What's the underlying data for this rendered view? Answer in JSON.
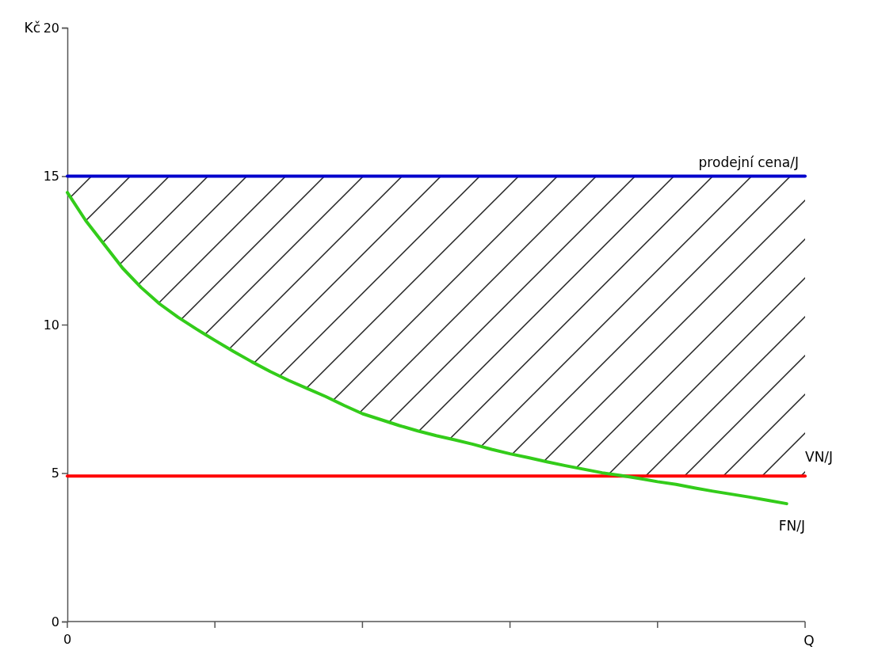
{
  "chart_data": {
    "type": "line",
    "ylabel": "Kč",
    "xlabel": "Q",
    "annotations": [
      "0"
    ],
    "categories": [
      null,
      null,
      null,
      null,
      null,
      null,
      null,
      null,
      null,
      null,
      null,
      null,
      null,
      null,
      null,
      null,
      null,
      null,
      null,
      null,
      null,
      null,
      null,
      null,
      null,
      null,
      null,
      null,
      null,
      null,
      null,
      null,
      null,
      null,
      null,
      null,
      null,
      null,
      null,
      null,
      null
    ],
    "ylim": [
      0,
      20
    ],
    "yticks": [
      0,
      5,
      10,
      15,
      20
    ],
    "legend": false,
    "marker": "none",
    "line_style": "solid",
    "series": [
      {
        "name": "prodejní cena/J",
        "color": "#0000cc",
        "values": [
          15,
          15,
          15,
          15,
          15,
          15,
          15,
          15,
          15,
          15,
          15,
          15,
          15,
          15,
          15,
          15,
          15,
          15,
          15,
          15,
          15,
          15,
          15,
          15,
          15,
          15,
          15,
          15,
          15,
          15,
          15,
          15,
          15,
          15,
          15,
          15,
          15,
          15,
          15,
          15,
          15
        ]
      },
      {
        "name": "VN/J",
        "color": "#ff0000",
        "values": [
          4.9,
          4.9,
          4.9,
          4.9,
          4.9,
          4.9,
          4.9,
          4.9,
          4.9,
          4.9,
          4.9,
          4.9,
          4.9,
          4.9,
          4.9,
          4.9,
          4.9,
          4.9,
          4.9,
          4.9,
          4.9,
          4.9,
          4.9,
          4.9,
          4.9,
          4.9,
          4.9,
          4.9,
          4.9,
          4.9,
          4.9,
          4.9,
          4.9,
          4.9,
          4.9,
          4.9,
          4.9,
          4.9,
          4.9,
          4.9,
          4.9
        ]
      },
      {
        "name": "FN/J",
        "color": "#33cc1a",
        "values": [
          14.45,
          13.5,
          12.7,
          11.9,
          11.25,
          10.7,
          10.25,
          9.85,
          9.47,
          9.1,
          8.75,
          8.42,
          8.12,
          7.85,
          7.58,
          7.28,
          7.0,
          6.8,
          6.6,
          6.42,
          6.26,
          6.12,
          5.97,
          5.8,
          5.65,
          5.52,
          5.38,
          5.25,
          5.13,
          5.01,
          4.92,
          4.82,
          4.71,
          4.62,
          4.5,
          4.39,
          4.29,
          4.19,
          4.08,
          3.97,
          null
        ]
      }
    ]
  }
}
